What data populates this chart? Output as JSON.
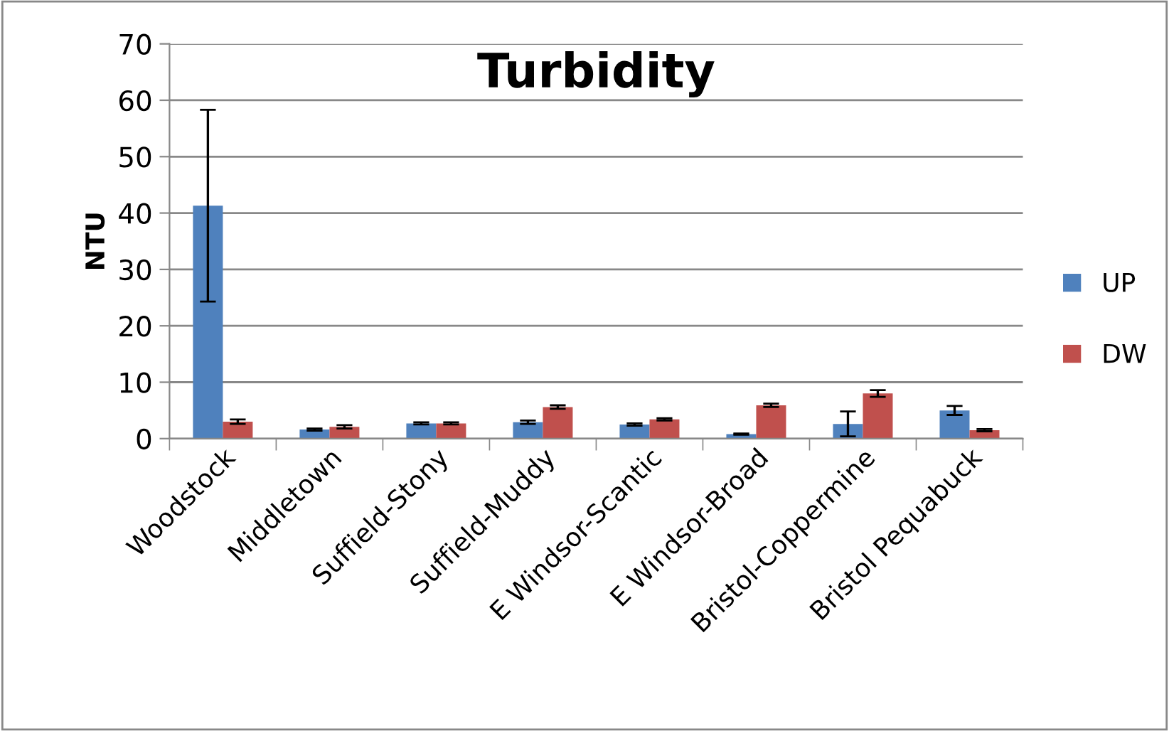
{
  "chart_data": {
    "type": "bar",
    "title": "Turbidity",
    "ylabel": "NTU",
    "categories": [
      "Woodstock",
      "Middletown",
      "Suffield-Stony",
      "Suffield-Muddy",
      "E Windsor-Scantic",
      "E Windsor-Broad",
      "Bristol-Coppermine",
      "Bristol Pequabuck"
    ],
    "series": [
      {
        "name": "UP",
        "color": "#4f81bd",
        "values": [
          41.3,
          1.6,
          2.7,
          2.9,
          2.5,
          0.8,
          2.6,
          5.0
        ],
        "errors": [
          17,
          0.2,
          0.2,
          0.3,
          0.2,
          0.1,
          2.2,
          0.8
        ]
      },
      {
        "name": "DW",
        "color": "#c0504d",
        "values": [
          3.0,
          2.1,
          2.7,
          5.6,
          3.4,
          5.9,
          8.0,
          1.5
        ],
        "errors": [
          0.4,
          0.3,
          0.2,
          0.3,
          0.2,
          0.3,
          0.6,
          0.2
        ]
      }
    ],
    "ylim": [
      0,
      70
    ],
    "yticks": [
      0,
      10,
      20,
      30,
      40,
      50,
      60,
      70
    ],
    "grid": "y",
    "legend": "right"
  }
}
